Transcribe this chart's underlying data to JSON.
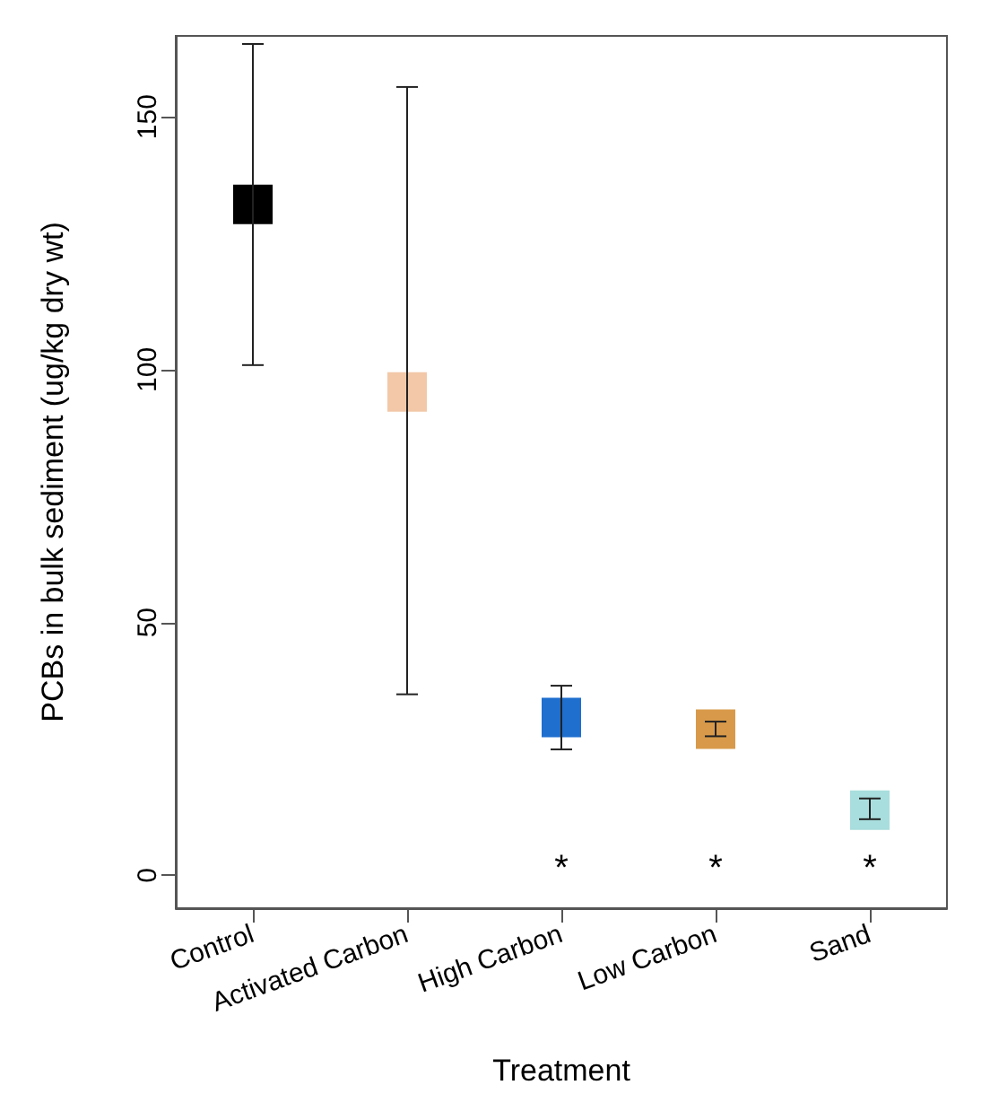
{
  "chart_data": {
    "type": "scatter",
    "xlabel": "Treatment",
    "ylabel": "PCBs in bulk sediment (ug/kg dry wt)",
    "categories": [
      "Control",
      "Activated Carbon",
      "High Carbon",
      "Low Carbon",
      "Sand"
    ],
    "values": [
      132.7,
      95.6,
      31.2,
      28.9,
      12.9
    ],
    "errors": [
      [
        100.9,
        164.4
      ],
      [
        35.8,
        155.9
      ],
      [
        24.9,
        37.5
      ],
      [
        27.5,
        30.4
      ],
      [
        11.1,
        15.2
      ]
    ],
    "colors": [
      "#000000",
      "#f2c8a8",
      "#1f6fcf",
      "#d89a4a",
      "#a8dedd"
    ],
    "marker": "square",
    "grid": false,
    "ylim": [
      -6.5,
      166
    ],
    "yticks": [
      0,
      50,
      100,
      150
    ],
    "annotations": [
      "*",
      "*",
      "*"
    ]
  }
}
